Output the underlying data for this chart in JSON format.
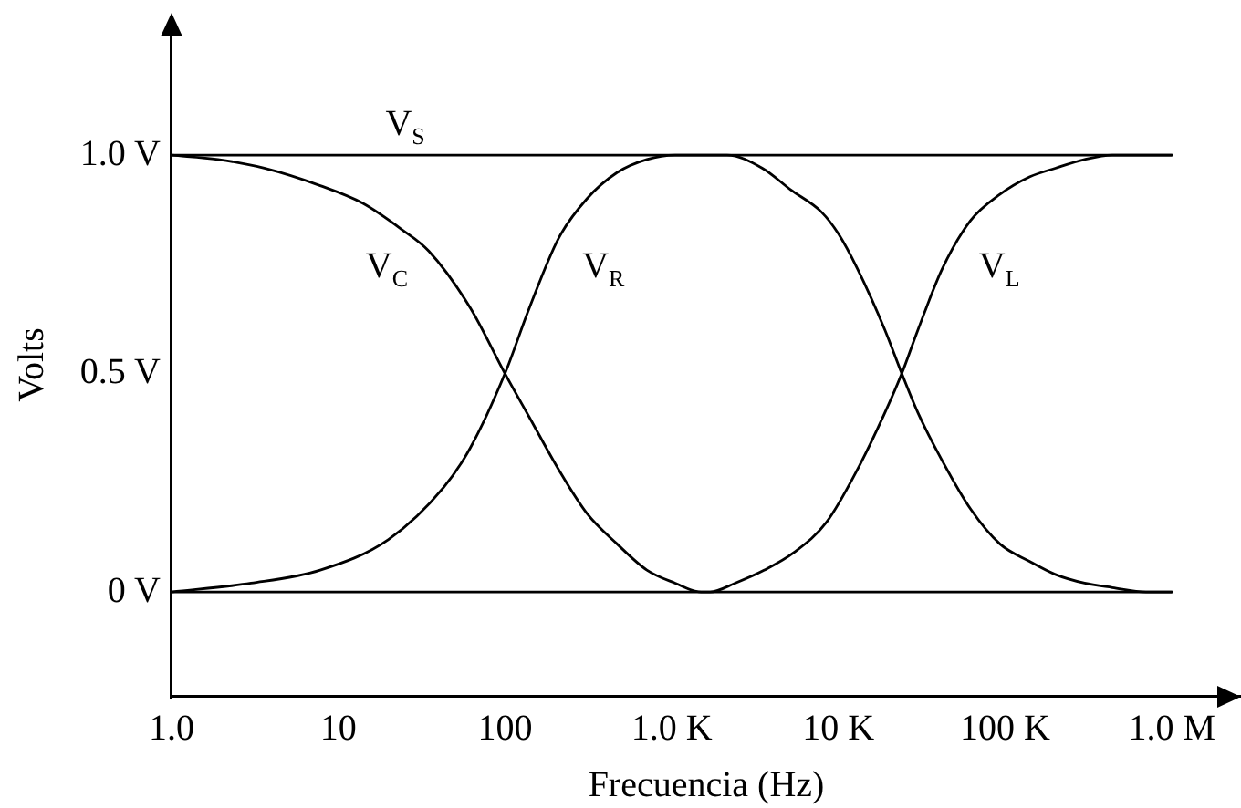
{
  "chart_data": {
    "type": "line",
    "xlabel": "Frecuencia (Hz)",
    "ylabel": "Volts",
    "log": "x",
    "xlim": [
      1,
      2600000
    ],
    "xticks": [
      {
        "value": 1,
        "label": "1.0"
      },
      10,
      100,
      {
        "value": 1000,
        "label": "1.0 K"
      },
      {
        "value": 10000,
        "label": "10 K"
      },
      {
        "value": 100000,
        "label": "100 K"
      },
      {
        "value": 1000000,
        "label": "1.0 M"
      }
    ],
    "ylim": [
      -0.24,
      1.28
    ],
    "yticks": [
      {
        "value": 0,
        "label": "0 V"
      },
      {
        "value": 0.5,
        "label": "0.5 V"
      },
      {
        "value": 1,
        "label": "1.0 V"
      }
    ],
    "grid": false,
    "legend": false,
    "marker": "none",
    "line_style": "solid",
    "series": [
      {
        "name": "V$_{S}$",
        "color": "#000000",
        "x": [
          1,
          1000000
        ],
        "values": [
          1,
          1
        ]
      },
      {
        "name": "V$_{C}$",
        "color": "#000000",
        "x": [
          1,
          1.9,
          3.6,
          7.8,
          14,
          24,
          35,
          62,
          100,
          140,
          210,
          310,
          470,
          710,
          1050,
          1500,
          1000000
        ],
        "values": [
          1,
          0.99,
          0.97,
          0.93,
          0.89,
          0.83,
          0.78,
          0.65,
          0.5,
          0.4,
          0.28,
          0.18,
          0.11,
          0.05,
          0.02,
          0,
          0
        ]
      },
      {
        "name": "V$_{R}$",
        "color": "#000000",
        "x": [
          1,
          3,
          7.8,
          20,
          43,
          62,
          100,
          140,
          210,
          310,
          470,
          710,
          1050,
          1500,
          2150,
          3500,
          5200,
          7900,
          10000,
          13000,
          19000,
          24000,
          30000,
          42000,
          62000,
          93000,
          140000,
          200000,
          300000,
          440000,
          700000,
          1000000
        ],
        "values": [
          0,
          0.02,
          0.05,
          0.12,
          0.24,
          0.33,
          0.5,
          0.65,
          0.81,
          0.9,
          0.96,
          0.99,
          1,
          1,
          1,
          0.97,
          0.92,
          0.87,
          0.82,
          0.74,
          0.6,
          0.5,
          0.41,
          0.3,
          0.19,
          0.11,
          0.07,
          0.04,
          0.02,
          0.01,
          0,
          0
        ]
      },
      {
        "name": "V$_{L}$",
        "color": "#000000",
        "x": [
          1,
          1700,
          2400,
          3600,
          5400,
          8500,
          13000,
          19000,
          24000,
          30000,
          42000,
          62000,
          93000,
          140000,
          200000,
          300000,
          440000,
          560000,
          1000000
        ],
        "values": [
          0,
          0,
          0.02,
          0.05,
          0.09,
          0.16,
          0.28,
          0.41,
          0.5,
          0.6,
          0.74,
          0.85,
          0.91,
          0.95,
          0.97,
          0.99,
          1,
          1,
          1
        ]
      }
    ]
  }
}
